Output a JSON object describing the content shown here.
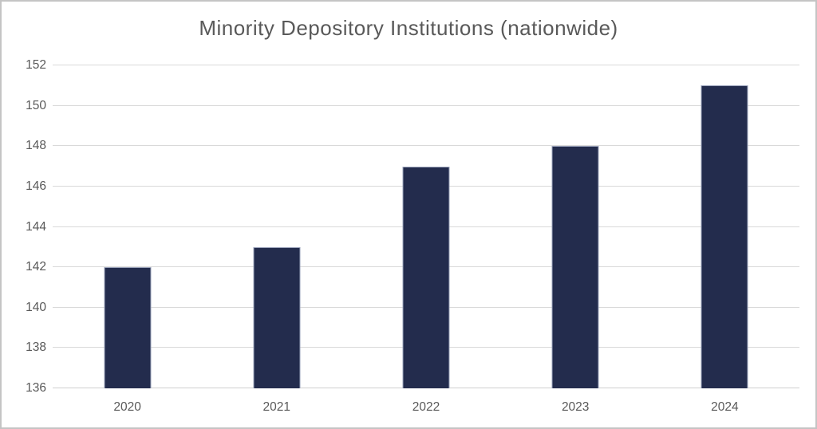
{
  "chart_data": {
    "type": "bar",
    "title": "Minority Depository Institutions (nationwide)",
    "categories": [
      "2020",
      "2021",
      "2022",
      "2023",
      "2024"
    ],
    "values": [
      142,
      143,
      147,
      148,
      151
    ],
    "xlabel": "",
    "ylabel": "",
    "ylim": [
      136,
      152
    ],
    "yticks": [
      136,
      138,
      140,
      142,
      144,
      146,
      148,
      150,
      152
    ],
    "grid": true,
    "legend_position": "none",
    "colors": {
      "bar_fill": "#232c4d",
      "bar_border": "#9ba3bb",
      "gridline": "#d9d9d9",
      "axis_text": "#595959",
      "title_text": "#595959",
      "frame_border": "#c4c4c4",
      "background": "#ffffff"
    }
  }
}
